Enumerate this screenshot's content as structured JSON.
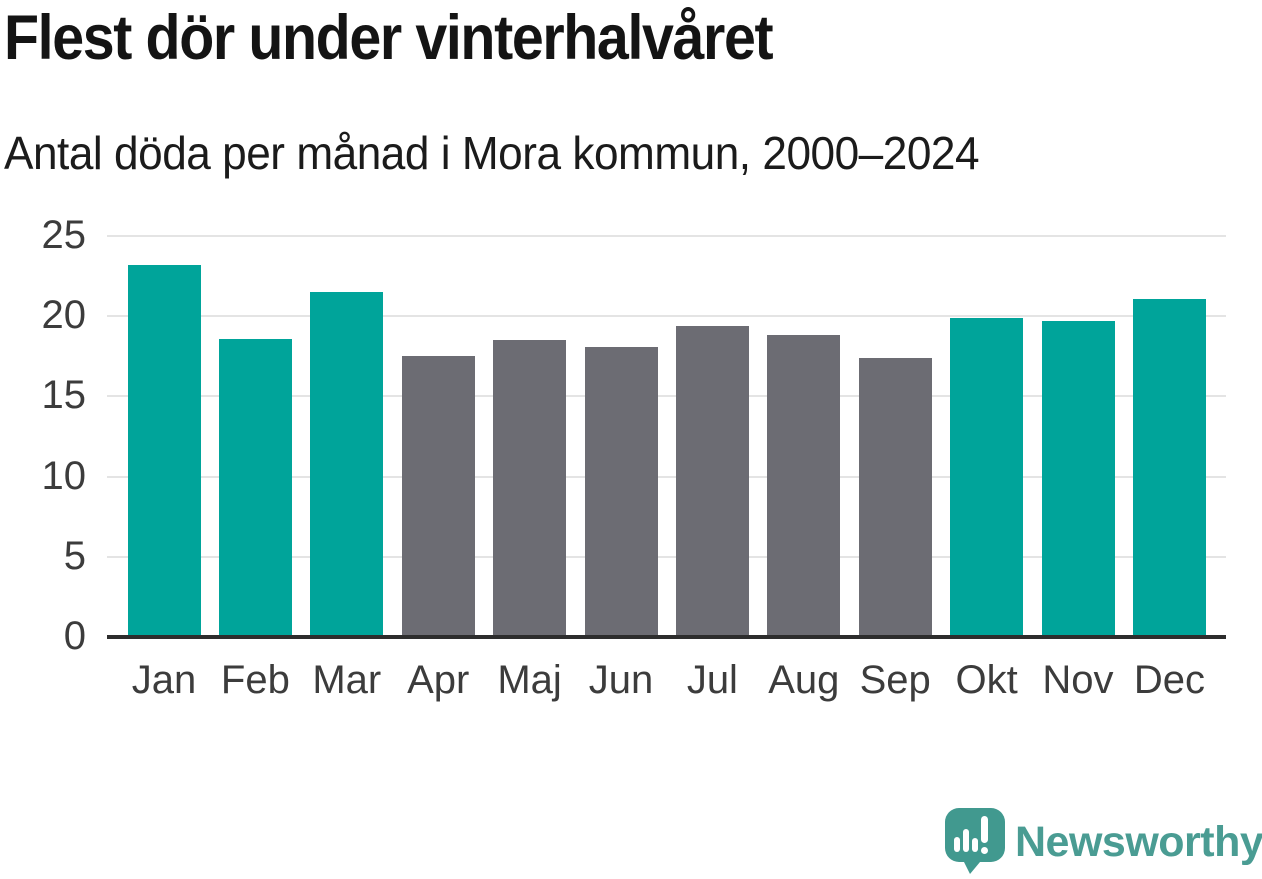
{
  "chart_data": {
    "type": "bar",
    "title": "Flest dör under vinterhalvåret",
    "subtitle": "Antal döda per månad i Mora kommun, 2000–2024",
    "categories": [
      "Jan",
      "Feb",
      "Mar",
      "Apr",
      "Maj",
      "Jun",
      "Jul",
      "Aug",
      "Sep",
      "Okt",
      "Nov",
      "Dec"
    ],
    "values": [
      23.2,
      18.6,
      21.5,
      17.5,
      18.5,
      18.1,
      19.4,
      18.8,
      17.4,
      19.9,
      19.7,
      21.1
    ],
    "ylim": [
      0,
      25
    ],
    "yticks": [
      0,
      5,
      10,
      15,
      20,
      25
    ],
    "grid": true,
    "legend": "none",
    "xlabel": "",
    "ylabel": "",
    "palette": {
      "winter_teal": "#00a49a",
      "summer_gray": "#6c6c73"
    },
    "bar_palette_keys": [
      "winter_teal",
      "winter_teal",
      "winter_teal",
      "summer_gray",
      "summer_gray",
      "summer_gray",
      "summer_gray",
      "summer_gray",
      "summer_gray",
      "winter_teal",
      "winter_teal",
      "winter_teal"
    ]
  },
  "footer": {
    "brand": "Newsworthy",
    "brand_color": "#4a9c93",
    "logo_color": "#41998f",
    "logo_icon": "speech-bubble-bar-chart-exclamation"
  }
}
